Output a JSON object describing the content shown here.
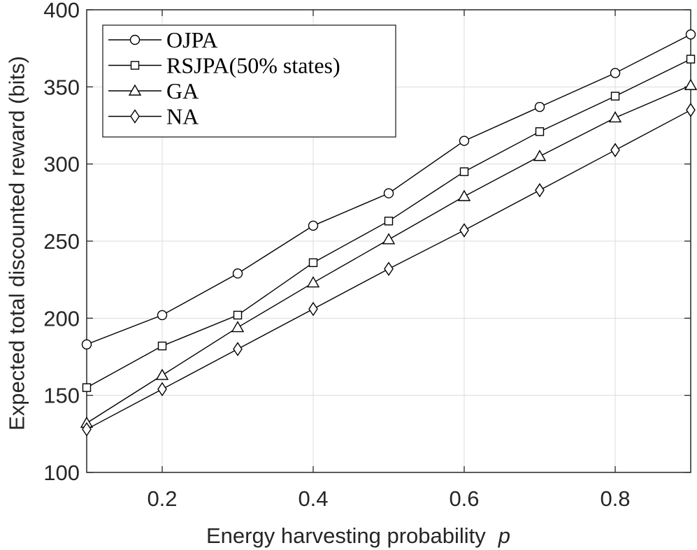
{
  "chart_data": {
    "type": "line",
    "x": [
      0.1,
      0.2,
      0.3,
      0.4,
      0.5,
      0.6,
      0.7,
      0.8,
      0.9
    ],
    "series": [
      {
        "name": "OJPA",
        "marker": "circle",
        "values": [
          183,
          202,
          229,
          260,
          281,
          315,
          337,
          359,
          384
        ]
      },
      {
        "name": "RSJPA(50% states)",
        "marker": "square",
        "values": [
          155,
          182,
          202,
          236,
          263,
          295,
          321,
          344,
          368
        ]
      },
      {
        "name": "GA",
        "marker": "triangle",
        "values": [
          132,
          163,
          194,
          223,
          251,
          279,
          305,
          330,
          351
        ]
      },
      {
        "name": "NA",
        "marker": "diamond",
        "values": [
          128,
          154,
          180,
          206,
          232,
          257,
          283,
          309,
          335
        ]
      }
    ],
    "xlabel": "Energy harvesting probability",
    "xlabel_symbol": "p",
    "ylabel": "Expected total discounted reward (bits)",
    "xlim": [
      0.1,
      0.9
    ],
    "ylim": [
      100,
      400
    ],
    "xticks": [
      0.2,
      0.4,
      0.6,
      0.8
    ],
    "xtick_labels": [
      "0.2",
      "0.4",
      "0.6",
      "0.8"
    ],
    "yticks": [
      100,
      150,
      200,
      250,
      300,
      350,
      400
    ],
    "ytick_labels": [
      "100",
      "150",
      "200",
      "250",
      "300",
      "350",
      "400"
    ],
    "grid": true,
    "legend_position": "top-left",
    "line_color": "#000000"
  }
}
